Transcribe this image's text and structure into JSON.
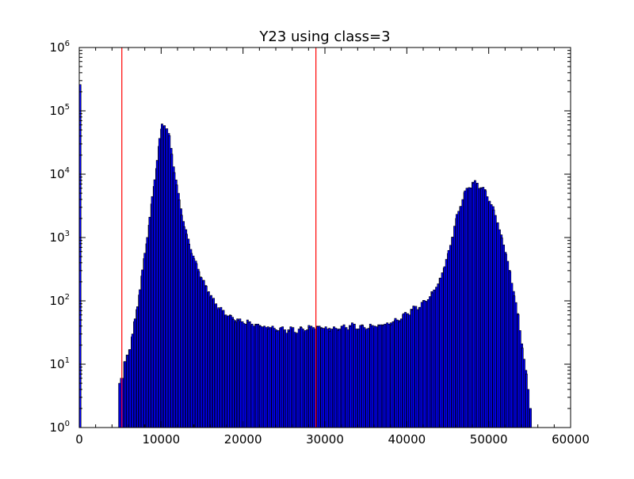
{
  "chart_data": {
    "type": "bar",
    "title": "Y23 using class=3",
    "xlabel": "",
    "ylabel": "",
    "xlim": [
      0,
      60000
    ],
    "ylim": [
      1,
      1000000
    ],
    "yscale": "log",
    "grid": false,
    "legend": "none",
    "x_ticks": [
      {
        "value": 0,
        "label": "0"
      },
      {
        "value": 10000,
        "label": "10000"
      },
      {
        "value": 20000,
        "label": "20000"
      },
      {
        "value": 30000,
        "label": "30000"
      },
      {
        "value": 40000,
        "label": "40000"
      },
      {
        "value": 50000,
        "label": "50000"
      },
      {
        "value": 60000,
        "label": "60000"
      }
    ],
    "y_ticks": [
      {
        "value": 1,
        "base": "10",
        "exp": "0"
      },
      {
        "value": 10,
        "base": "10",
        "exp": "1"
      },
      {
        "value": 100,
        "base": "10",
        "exp": "2"
      },
      {
        "value": 1000,
        "base": "10",
        "exp": "3"
      },
      {
        "value": 10000,
        "base": "10",
        "exp": "4"
      },
      {
        "value": 100000,
        "base": "10",
        "exp": "5"
      },
      {
        "value": 1000000,
        "base": "10",
        "exp": "6"
      }
    ],
    "bin_width": 220,
    "series": [
      {
        "values": [
          [
            0,
            260000
          ],
          [
            4800,
            5
          ],
          [
            5200,
            7
          ],
          [
            5500,
            11
          ],
          [
            5800,
            14
          ],
          [
            6100,
            18
          ],
          [
            6400,
            30
          ],
          [
            6700,
            48
          ],
          [
            7000,
            80
          ],
          [
            7300,
            150
          ],
          [
            7600,
            280
          ],
          [
            7900,
            520
          ],
          [
            8200,
            1000
          ],
          [
            8500,
            2000
          ],
          [
            8800,
            4000
          ],
          [
            9100,
            8000
          ],
          [
            9400,
            17000
          ],
          [
            9700,
            35000
          ],
          [
            10000,
            60000
          ],
          [
            10300,
            63000
          ],
          [
            10600,
            55000
          ],
          [
            10900,
            40000
          ],
          [
            11200,
            22000
          ],
          [
            11500,
            12000
          ],
          [
            11800,
            7000
          ],
          [
            12100,
            4000
          ],
          [
            12400,
            2500
          ],
          [
            12700,
            1600
          ],
          [
            13000,
            1100
          ],
          [
            13300,
            800
          ],
          [
            13600,
            600
          ],
          [
            13900,
            450
          ],
          [
            14200,
            360
          ],
          [
            14500,
            290
          ],
          [
            14800,
            230
          ],
          [
            15100,
            190
          ],
          [
            15400,
            160
          ],
          [
            15700,
            140
          ],
          [
            16000,
            115
          ],
          [
            16300,
            100
          ],
          [
            16600,
            90
          ],
          [
            16900,
            80
          ],
          [
            17200,
            75
          ],
          [
            17500,
            70
          ],
          [
            17800,
            65
          ],
          [
            18100,
            60
          ],
          [
            18400,
            58
          ],
          [
            18700,
            55
          ],
          [
            19000,
            52
          ],
          [
            19300,
            50
          ],
          [
            19600,
            48
          ],
          [
            20000,
            47
          ],
          [
            20500,
            45
          ],
          [
            21000,
            43
          ],
          [
            21500,
            42
          ],
          [
            22000,
            40
          ],
          [
            22500,
            39
          ],
          [
            23000,
            38
          ],
          [
            23500,
            37
          ],
          [
            24000,
            36
          ],
          [
            24500,
            36
          ],
          [
            25000,
            35
          ],
          [
            25500,
            35
          ],
          [
            26000,
            35
          ],
          [
            26500,
            34
          ],
          [
            27000,
            35
          ],
          [
            27500,
            36
          ],
          [
            28000,
            37
          ],
          [
            28500,
            38
          ],
          [
            29000,
            39
          ],
          [
            29500,
            38
          ],
          [
            30000,
            37
          ],
          [
            30500,
            36
          ],
          [
            31000,
            36
          ],
          [
            31500,
            37
          ],
          [
            32000,
            38
          ],
          [
            32500,
            39
          ],
          [
            33000,
            40
          ],
          [
            33500,
            40
          ],
          [
            34000,
            39
          ],
          [
            34500,
            38
          ],
          [
            35000,
            38
          ],
          [
            35500,
            39
          ],
          [
            36000,
            40
          ],
          [
            36500,
            41
          ],
          [
            37000,
            42
          ],
          [
            37500,
            43
          ],
          [
            38000,
            45
          ],
          [
            38500,
            48
          ],
          [
            39000,
            52
          ],
          [
            39500,
            58
          ],
          [
            40000,
            65
          ],
          [
            40500,
            72
          ],
          [
            41000,
            78
          ],
          [
            41500,
            85
          ],
          [
            42000,
            95
          ],
          [
            42500,
            110
          ],
          [
            43000,
            130
          ],
          [
            43500,
            165
          ],
          [
            44000,
            230
          ],
          [
            44500,
            350
          ],
          [
            45000,
            600
          ],
          [
            45500,
            1100
          ],
          [
            46000,
            2100
          ],
          [
            46500,
            3500
          ],
          [
            47000,
            5000
          ],
          [
            47500,
            6500
          ],
          [
            48000,
            7200
          ],
          [
            48500,
            7000
          ],
          [
            49000,
            6300
          ],
          [
            49500,
            5200
          ],
          [
            50000,
            3900
          ],
          [
            50500,
            2700
          ],
          [
            51000,
            1700
          ],
          [
            51500,
            1000
          ],
          [
            52000,
            550
          ],
          [
            52500,
            280
          ],
          [
            53000,
            130
          ],
          [
            53500,
            55
          ],
          [
            54000,
            20
          ],
          [
            54500,
            6
          ],
          [
            55000,
            2
          ]
        ]
      }
    ],
    "reference_lines": [
      {
        "x": 5200,
        "color": "#ff0000"
      },
      {
        "x": 28900,
        "color": "#ff0000"
      }
    ],
    "bar_color": "#0000ff",
    "bar_edge_color": "#000000"
  }
}
